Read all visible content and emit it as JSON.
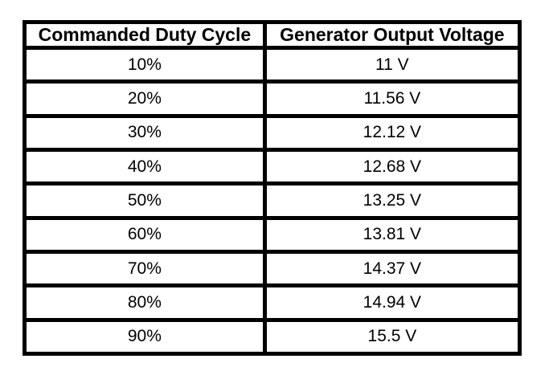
{
  "colors": {
    "background": "#ffffff",
    "border": "#000000",
    "text": "#000000"
  },
  "chart_data": {
    "type": "table",
    "columns": [
      "Commanded Duty Cycle",
      "Generator Output Voltage"
    ],
    "rows": [
      [
        "10%",
        "11 V"
      ],
      [
        "20%",
        "11.56 V"
      ],
      [
        "30%",
        "12.12 V"
      ],
      [
        "40%",
        "12.68 V"
      ],
      [
        "50%",
        "13.25 V"
      ],
      [
        "60%",
        "13.81 V"
      ],
      [
        "70%",
        "14.37 V"
      ],
      [
        "80%",
        "14.94 V"
      ],
      [
        "90%",
        "15.5 V"
      ]
    ],
    "duty_cycle_percent": [
      10,
      20,
      30,
      40,
      50,
      60,
      70,
      80,
      90
    ],
    "output_voltage_v": [
      11,
      11.56,
      12.12,
      12.68,
      13.25,
      13.81,
      14.37,
      14.94,
      15.5
    ]
  }
}
